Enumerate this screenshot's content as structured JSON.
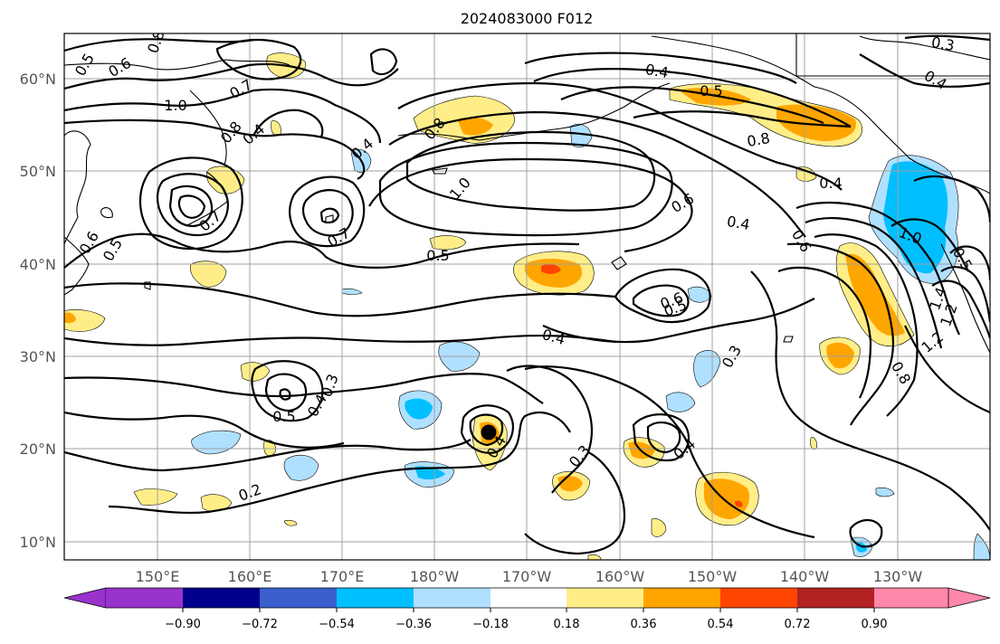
{
  "title": "2024083000 F012",
  "lat_labels": [
    "60°N",
    "50°N",
    "40°N",
    "30°N",
    "20°N",
    "10°N"
  ],
  "lon_labels": [
    "150°E",
    "160°E",
    "170°E",
    "180°W",
    "170°W",
    "160°W",
    "150°W",
    "140°W",
    "130°W"
  ],
  "contour_labels": [
    "0.5",
    "0.6",
    "0.8",
    "1.0",
    "0.7",
    "0.4",
    "0.8",
    "0.4",
    "0.6",
    "0.7",
    "0.5",
    "1.0",
    "0.7",
    "0.5",
    "0.4",
    "0.8",
    "0.8",
    "0.6",
    "0.4",
    "0.6",
    "0.4",
    "0.5",
    "0.4",
    "0.3",
    "0.5",
    "0.4",
    "0.3",
    "0.4",
    "0.3",
    "0.4",
    "0.2",
    "1.0",
    "1.4",
    "1.2",
    "1.2",
    "0.8",
    "0.3",
    "0.4",
    "0.5",
    "0.6",
    "0.5"
  ],
  "colorbar": {
    "ticks": [
      "−0.90",
      "−0.72",
      "−0.54",
      "−0.36",
      "−0.18",
      "0.18",
      "0.36",
      "0.54",
      "0.72",
      "0.90"
    ],
    "colors": {
      "under": "#9933cc",
      "c1": "#00008b",
      "c2": "#3a5fcd",
      "c3": "#00bfff",
      "c4": "#b0e0ff",
      "neutral": "#ffffff",
      "w1": "#ffee88",
      "w2": "#ffa500",
      "w3": "#ff4500",
      "w4": "#b22222",
      "over": "#ff88aa"
    }
  },
  "map": {
    "lon_range": [
      "140°E",
      "120°W"
    ],
    "lat_range": [
      "8°N",
      "65°N"
    ],
    "grid": true,
    "marker": "storm-center"
  }
}
